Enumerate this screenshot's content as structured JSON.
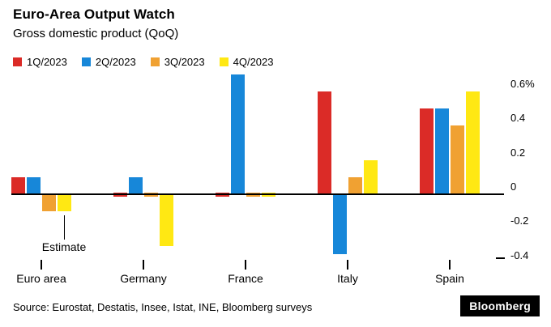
{
  "header": {
    "title": "Euro-Area Output Watch",
    "subtitle": "Gross domestic product (QoQ)"
  },
  "chart_data": {
    "type": "bar",
    "categories": [
      "Euro area",
      "Germany",
      "France",
      "Italy",
      "Spain"
    ],
    "series": [
      {
        "name": "1Q/2023",
        "color": "#db2b27",
        "values": [
          0.1,
          0.0,
          0.0,
          0.6,
          0.5
        ]
      },
      {
        "name": "2Q/2023",
        "color": "#1787d9",
        "values": [
          0.1,
          0.1,
          0.7,
          -0.35,
          0.5
        ]
      },
      {
        "name": "3Q/2023",
        "color": "#f0a132",
        "values": [
          -0.1,
          0.0,
          0.0,
          0.1,
          0.4
        ]
      },
      {
        "name": "4Q/2023",
        "color": "#ffe813",
        "values": [
          -0.1,
          -0.3,
          0.0,
          0.2,
          0.6
        ]
      }
    ],
    "y_ticks": [
      {
        "label": "0.6%",
        "value": 0.6
      },
      {
        "label": "0.4",
        "value": 0.4
      },
      {
        "label": "0.2",
        "value": 0.2
      },
      {
        "label": "0",
        "value": 0
      },
      {
        "label": "-0.2",
        "value": -0.2
      },
      {
        "label": "-0.4",
        "value": -0.4
      }
    ],
    "ylim": [
      -0.45,
      0.72
    ],
    "grid": false,
    "legend_position": "top",
    "annotation": {
      "text": "Estimate",
      "target_category": "Euro area",
      "target_series": "4Q/2023"
    }
  },
  "footer": {
    "source": "Source: Eurostat, Destatis, Insee, Istat, INE, Bloomberg surveys",
    "brand": "Bloomberg"
  }
}
